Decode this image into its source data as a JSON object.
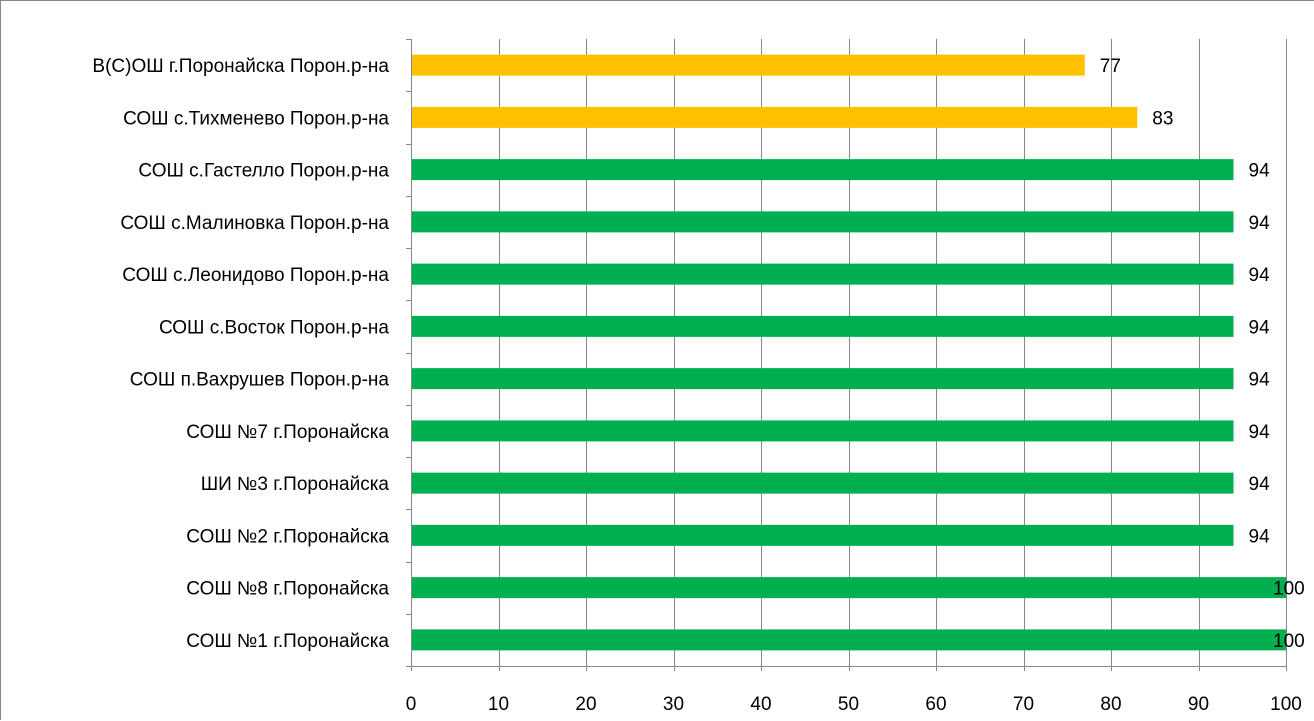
{
  "chart_data": {
    "type": "bar",
    "orientation": "horizontal",
    "categories": [
      "В(С)ОШ г.Поронайска Порон.р-на",
      "СОШ с.Тихменево Порон.р-на",
      "СОШ с.Гастелло Порон.р-на",
      "СОШ с.Малиновка Порон.р-на",
      "СОШ с.Леонидово Порон.р-на",
      "СОШ с.Восток Порон.р-на",
      "СОШ п.Вахрушев Порон.р-на",
      "СОШ №7 г.Поронайска",
      "ШИ №3 г.Поронайска",
      "СОШ №2 г.Поронайска",
      "СОШ №8 г.Поронайска",
      "СОШ №1 г.Поронайска"
    ],
    "values": [
      77,
      83,
      94,
      94,
      94,
      94,
      94,
      94,
      94,
      94,
      100,
      100
    ],
    "bar_colors": [
      "#FFC000",
      "#FFC000",
      "#00B050",
      "#00B050",
      "#00B050",
      "#00B050",
      "#00B050",
      "#00B050",
      "#00B050",
      "#00B050",
      "#00B050",
      "#00B050"
    ],
    "data_labels": [
      "77",
      "83",
      "94",
      "94",
      "94",
      "94",
      "94",
      "94",
      "94",
      "94",
      "100",
      "100"
    ],
    "xlim": [
      0,
      100
    ],
    "x_ticks": [
      0,
      10,
      20,
      30,
      40,
      50,
      60,
      70,
      80,
      90,
      100
    ],
    "x_tick_labels": [
      "0",
      "10",
      "20",
      "30",
      "40",
      "50",
      "60",
      "70",
      "80",
      "90",
      "100"
    ],
    "grid": "vertical",
    "legend": "none",
    "colors": {
      "grid": "#888888",
      "axis": "#888888",
      "text": "#000000"
    }
  }
}
